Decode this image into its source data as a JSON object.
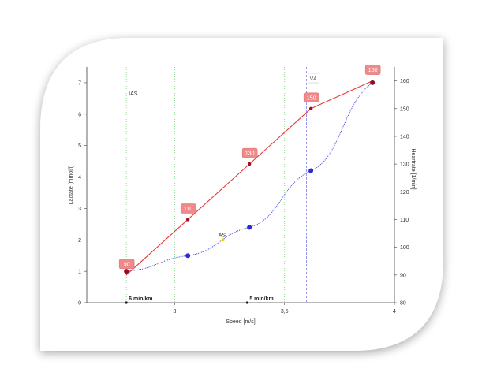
{
  "chart_data": {
    "type": "line",
    "xlabel": "Speed [m/s]",
    "ylabel_left": "Lactate [mmol/l]",
    "ylabel_right": "Heartrate [1/min]",
    "xlim": [
      2.6,
      4.0
    ],
    "ylim_left": [
      0,
      7.5
    ],
    "ylim_right": [
      80,
      165
    ],
    "x_ticks": [
      "3",
      "3,5",
      "4"
    ],
    "x_tick_values": [
      3.0,
      3.5,
      4.0
    ],
    "y_left_ticks": [
      0,
      1,
      2,
      3,
      4,
      5,
      6,
      7
    ],
    "y_right_ticks": [
      80,
      90,
      100,
      110,
      120,
      130,
      140,
      150,
      160
    ],
    "series": [
      {
        "axis": "right",
        "color": "#e83a3a",
        "x": [
          2.78,
          3.06,
          3.34,
          3.62,
          3.9
        ],
        "y": [
          90,
          110,
          130,
          150,
          160
        ],
        "labels": [
          "90",
          "110",
          "130",
          "150",
          "160"
        ]
      },
      {
        "axis": "left",
        "color": "#2a2ad8",
        "x": [
          2.78,
          3.06,
          3.34,
          3.62,
          3.9
        ],
        "y": [
          1.0,
          1.5,
          2.4,
          4.2,
          7.0
        ]
      }
    ],
    "vertical_lines": [
      {
        "x": 2.78,
        "label": "IAS",
        "color": "#7fd07f"
      },
      {
        "x": 3.0,
        "label": "",
        "color": "#7fd07f"
      },
      {
        "x": 3.5,
        "label": "",
        "color": "#7fd07f"
      },
      {
        "x": 3.6,
        "label": "V4",
        "color": "#8080e8"
      }
    ],
    "annotations": [
      {
        "label": "AS",
        "x": 3.22,
        "y": 2.0,
        "color": "#f0d000"
      }
    ],
    "pace_marks": [
      {
        "x": 2.78,
        "label": "6 min/km"
      },
      {
        "x": 3.33,
        "label": "5 min/km"
      }
    ]
  }
}
